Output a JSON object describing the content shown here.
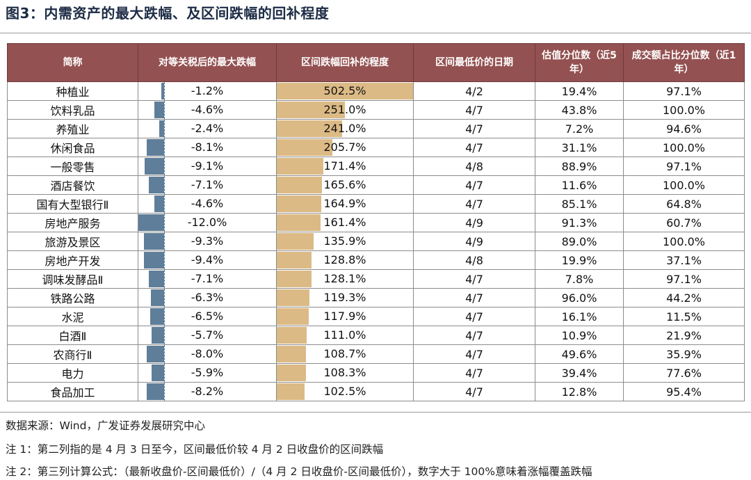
{
  "title": "图3：内需资产的最大跌幅、及区间跌幅的回补程度",
  "colors": {
    "header_bg": "#945151",
    "drawdown_bar": "#5f7e99",
    "recovery_bar": "#dcba85"
  },
  "table": {
    "headers": [
      "简称",
      "对等关税后的最大跌幅",
      "区间跌幅回补的程度",
      "区间最低价的日期",
      "估值分位数（近5年）",
      "成交额占比分位数（近1年）"
    ],
    "rows": [
      {
        "name": "种植业",
        "drawdown": "-1.2%",
        "drawdown_value": -1.2,
        "recovery": "502.5%",
        "recovery_value": 502.5,
        "low_date": "4/2",
        "valuation_pct": "19.4%",
        "turnover_pct": "97.1%"
      },
      {
        "name": "饮料乳品",
        "drawdown": "-4.6%",
        "drawdown_value": -4.6,
        "recovery": "251.0%",
        "recovery_value": 251.0,
        "low_date": "4/7",
        "valuation_pct": "43.8%",
        "turnover_pct": "100.0%"
      },
      {
        "name": "养殖业",
        "drawdown": "-2.4%",
        "drawdown_value": -2.4,
        "recovery": "241.0%",
        "recovery_value": 241.0,
        "low_date": "4/7",
        "valuation_pct": "7.2%",
        "turnover_pct": "94.6%"
      },
      {
        "name": "休闲食品",
        "drawdown": "-8.1%",
        "drawdown_value": -8.1,
        "recovery": "205.7%",
        "recovery_value": 205.7,
        "low_date": "4/7",
        "valuation_pct": "31.1%",
        "turnover_pct": "100.0%"
      },
      {
        "name": "一般零售",
        "drawdown": "-9.1%",
        "drawdown_value": -9.1,
        "recovery": "171.4%",
        "recovery_value": 171.4,
        "low_date": "4/8",
        "valuation_pct": "88.9%",
        "turnover_pct": "97.1%"
      },
      {
        "name": "酒店餐饮",
        "drawdown": "-7.1%",
        "drawdown_value": -7.1,
        "recovery": "165.6%",
        "recovery_value": 165.6,
        "low_date": "4/7",
        "valuation_pct": "11.6%",
        "turnover_pct": "100.0%"
      },
      {
        "name": "国有大型银行Ⅱ",
        "drawdown": "-4.6%",
        "drawdown_value": -4.6,
        "recovery": "164.9%",
        "recovery_value": 164.9,
        "low_date": "4/7",
        "valuation_pct": "85.1%",
        "turnover_pct": "64.8%"
      },
      {
        "name": "房地产服务",
        "drawdown": "-12.0%",
        "drawdown_value": -12.0,
        "recovery": "161.4%",
        "recovery_value": 161.4,
        "low_date": "4/9",
        "valuation_pct": "91.3%",
        "turnover_pct": "60.7%"
      },
      {
        "name": "旅游及景区",
        "drawdown": "-9.3%",
        "drawdown_value": -9.3,
        "recovery": "135.9%",
        "recovery_value": 135.9,
        "low_date": "4/9",
        "valuation_pct": "89.0%",
        "turnover_pct": "100.0%"
      },
      {
        "name": "房地产开发",
        "drawdown": "-9.4%",
        "drawdown_value": -9.4,
        "recovery": "128.8%",
        "recovery_value": 128.8,
        "low_date": "4/8",
        "valuation_pct": "19.9%",
        "turnover_pct": "37.1%"
      },
      {
        "name": "调味发酵品Ⅱ",
        "drawdown": "-7.1%",
        "drawdown_value": -7.1,
        "recovery": "128.1%",
        "recovery_value": 128.1,
        "low_date": "4/7",
        "valuation_pct": "7.8%",
        "turnover_pct": "97.1%"
      },
      {
        "name": "铁路公路",
        "drawdown": "-6.3%",
        "drawdown_value": -6.3,
        "recovery": "119.3%",
        "recovery_value": 119.3,
        "low_date": "4/7",
        "valuation_pct": "96.0%",
        "turnover_pct": "44.2%"
      },
      {
        "name": "水泥",
        "drawdown": "-6.5%",
        "drawdown_value": -6.5,
        "recovery": "117.9%",
        "recovery_value": 117.9,
        "low_date": "4/7",
        "valuation_pct": "16.1%",
        "turnover_pct": "11.5%"
      },
      {
        "name": "白酒Ⅱ",
        "drawdown": "-5.7%",
        "drawdown_value": -5.7,
        "recovery": "111.0%",
        "recovery_value": 111.0,
        "low_date": "4/7",
        "valuation_pct": "10.9%",
        "turnover_pct": "21.9%"
      },
      {
        "name": "农商行Ⅱ",
        "drawdown": "-8.0%",
        "drawdown_value": -8.0,
        "recovery": "108.7%",
        "recovery_value": 108.7,
        "low_date": "4/7",
        "valuation_pct": "49.6%",
        "turnover_pct": "35.9%"
      },
      {
        "name": "电力",
        "drawdown": "-5.9%",
        "drawdown_value": -5.9,
        "recovery": "108.3%",
        "recovery_value": 108.3,
        "low_date": "4/7",
        "valuation_pct": "39.4%",
        "turnover_pct": "77.6%"
      },
      {
        "name": "食品加工",
        "drawdown": "-8.2%",
        "drawdown_value": -8.2,
        "recovery": "102.5%",
        "recovery_value": 102.5,
        "low_date": "4/7",
        "valuation_pct": "12.8%",
        "turnover_pct": "95.4%"
      }
    ]
  },
  "notes": {
    "source": "数据来源：Wind，广发证券发展研究中心",
    "note1": "注 1：第二列指的是 4 月 3 日至今，区间最低价较 4 月 2 日收盘价的区间跌幅",
    "note2": "注 2：第三列计算公式：（最新收盘价-区间最低价）/（4 月 2 日收盘价-区间最低价），数字大于 100%意味着涨幅覆盖跌幅"
  }
}
